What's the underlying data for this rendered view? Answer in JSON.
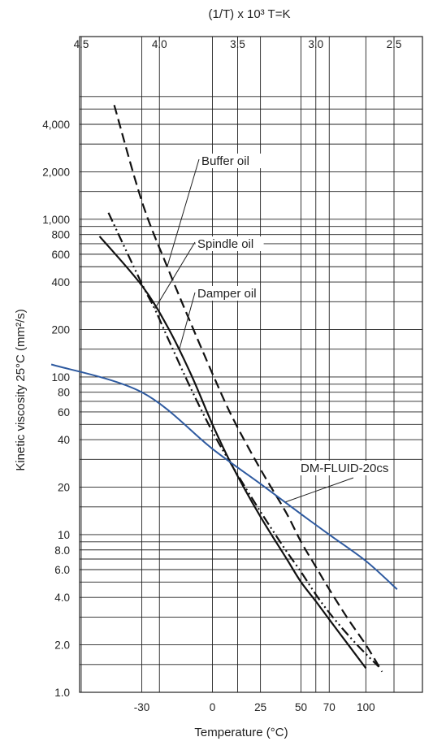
{
  "chart_data": {
    "type": "line",
    "title": "",
    "top_axis": {
      "label": "(1/T) x 10³ T=K",
      "ticks": [
        "4.5",
        "4.0",
        "3.5",
        "3.0",
        "2.5"
      ],
      "values": [
        4.5,
        4.0,
        3.5,
        3.0,
        2.5
      ]
    },
    "xlabel": "Temperature (°C)",
    "ylabel": "Kinetic viscosity 25°C (mm²/s)",
    "x_ticks": [
      "-30",
      "0",
      "25",
      "50",
      "70",
      "100"
    ],
    "y_scale": "log",
    "y_ticks": [
      "1.0",
      "2.0",
      "4.0",
      "6.0",
      "8.0",
      "10",
      "20",
      "40",
      "60",
      "80",
      "100",
      "200",
      "400",
      "600",
      "800",
      "1,000",
      "2,000",
      "4,000"
    ],
    "ylim": [
      1,
      7000
    ],
    "grid": true,
    "series": [
      {
        "name": "Buffer oil",
        "style": "dashed",
        "color": "#111111",
        "x": [
          -40,
          -30,
          -20,
          -10,
          0,
          10,
          25,
          40,
          50,
          60,
          70,
          85,
          100,
          115
        ],
        "y": [
          5300,
          1300,
          500,
          220,
          105,
          55,
          26,
          14,
          9,
          6.3,
          4.5,
          2.9,
          2.0,
          1.35
        ]
      },
      {
        "name": "Spindle oil",
        "style": "dash-dot-dot",
        "color": "#111111",
        "x": [
          -42,
          -30,
          -25,
          -20,
          -10,
          0,
          10,
          25,
          40,
          50,
          60,
          70,
          85,
          100,
          112
        ],
        "y": [
          1100,
          390,
          270,
          180,
          85,
          45,
          27,
          14,
          8,
          5.8,
          4.2,
          3.2,
          2.3,
          1.75,
          1.45
        ]
      },
      {
        "name": "Damper oil",
        "style": "solid",
        "color": "#111111",
        "x": [
          -45,
          -30,
          -20,
          -10,
          0,
          10,
          25,
          40,
          50,
          60,
          70,
          85,
          100
        ],
        "y": [
          780,
          380,
          210,
          105,
          50,
          27,
          13,
          7.2,
          5.0,
          3.8,
          2.9,
          2.0,
          1.42
        ]
      },
      {
        "name": "DM-FLUID-20cs",
        "style": "solid",
        "color": "#2e5aa0",
        "x": [
          -60,
          -30,
          0,
          25,
          50,
          70,
          100,
          130
        ],
        "y": [
          120,
          80,
          35,
          21,
          13.5,
          10,
          6.8,
          4.5
        ]
      }
    ],
    "annotations": [
      "Buffer oil",
      "Spindle oil",
      "Damper oil",
      "DM-FLUID-20cs"
    ]
  }
}
